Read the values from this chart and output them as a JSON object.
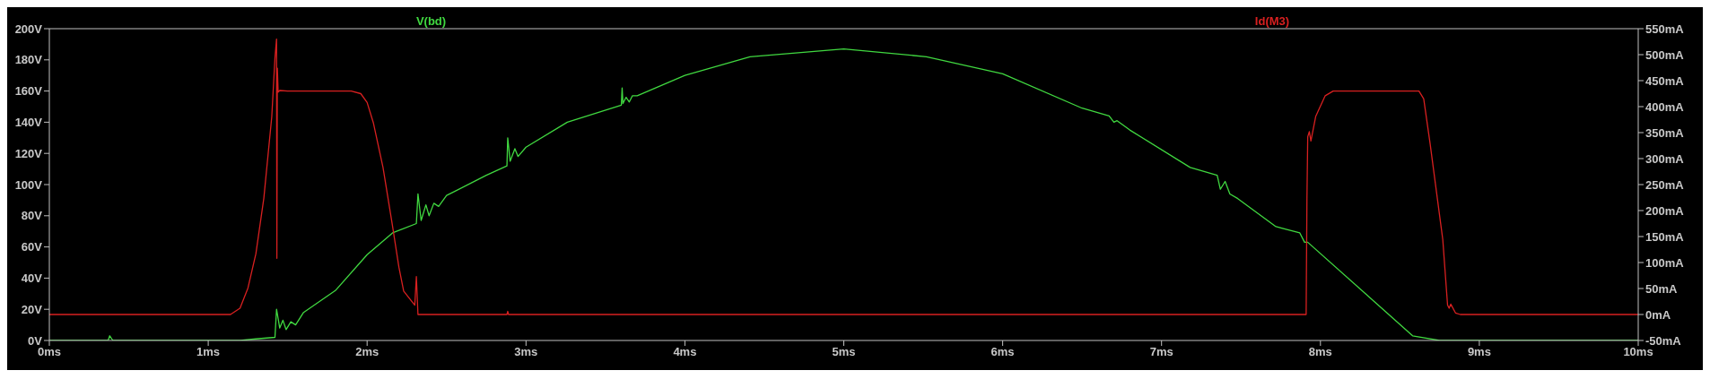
{
  "chart_data": {
    "type": "line",
    "legend": "top",
    "marker": "none",
    "line_style": "solid",
    "grid": false,
    "xlim": [
      0,
      10
    ],
    "xticks": [
      {
        "value": 0,
        "label": "0ms"
      },
      {
        "value": 1,
        "label": "1ms"
      },
      {
        "value": 2,
        "label": "2ms"
      },
      {
        "value": 3,
        "label": "3ms"
      },
      {
        "value": 4,
        "label": "4ms"
      },
      {
        "value": 5,
        "label": "5ms"
      },
      {
        "value": 6,
        "label": "6ms"
      },
      {
        "value": 7,
        "label": "7ms"
      },
      {
        "value": 8,
        "label": "8ms"
      },
      {
        "value": 9,
        "label": "9ms"
      },
      {
        "value": 10,
        "label": "10ms"
      }
    ],
    "ylim": [
      0,
      200
    ],
    "yticks": [
      {
        "value": 0,
        "label": "0V"
      },
      {
        "value": 20,
        "label": "20V"
      },
      {
        "value": 40,
        "label": "40V"
      },
      {
        "value": 60,
        "label": "60V"
      },
      {
        "value": 80,
        "label": "80V"
      },
      {
        "value": 100,
        "label": "100V"
      },
      {
        "value": 120,
        "label": "120V"
      },
      {
        "value": 140,
        "label": "140V"
      },
      {
        "value": 160,
        "label": "160V"
      },
      {
        "value": 180,
        "label": "180V"
      },
      {
        "value": 200,
        "label": "200V"
      }
    ],
    "y2lim": [
      -50,
      550
    ],
    "y2ticks": [
      {
        "value": -50,
        "label": "-50mA"
      },
      {
        "value": 0,
        "label": "0mA"
      },
      {
        "value": 50,
        "label": "50mA"
      },
      {
        "value": 100,
        "label": "100mA"
      },
      {
        "value": 150,
        "label": "150mA"
      },
      {
        "value": 200,
        "label": "200mA"
      },
      {
        "value": 250,
        "label": "250mA"
      },
      {
        "value": 300,
        "label": "300mA"
      },
      {
        "value": 350,
        "label": "350mA"
      },
      {
        "value": 400,
        "label": "400mA"
      },
      {
        "value": 450,
        "label": "450mA"
      },
      {
        "value": 500,
        "label": "500mA"
      },
      {
        "value": 550,
        "label": "550mA"
      }
    ],
    "series": [
      {
        "name": "V(bd)",
        "color": "#40d840",
        "x": [
          0,
          0.37,
          0.38,
          0.4,
          1.2,
          1.3,
          1.42,
          1.43,
          1.45,
          1.47,
          1.49,
          1.52,
          1.55,
          1.6,
          1.8,
          2.0,
          2.16,
          2.31,
          2.32,
          2.34,
          2.37,
          2.39,
          2.42,
          2.45,
          2.5,
          2.75,
          2.88,
          2.885,
          2.9,
          2.93,
          2.95,
          3.0,
          3.26,
          3.6,
          3.605,
          3.61,
          3.63,
          3.65,
          3.67,
          3.7,
          4.0,
          4.41,
          5.0,
          5.52,
          6.0,
          6.5,
          6.67,
          6.7,
          6.72,
          6.8,
          7.18,
          7.35,
          7.37,
          7.4,
          7.43,
          7.48,
          7.72,
          7.87,
          7.9,
          7.92,
          8.58,
          8.75,
          10
        ],
        "values": [
          0,
          0,
          3,
          0,
          0,
          1,
          2,
          20,
          8,
          13,
          7,
          12,
          10,
          18,
          32,
          55,
          69,
          75,
          94,
          77,
          87,
          80,
          88,
          86,
          93,
          106,
          112,
          130,
          115,
          123,
          118,
          124,
          140,
          151,
          162,
          152,
          156,
          153,
          157,
          157,
          170,
          182,
          187,
          182,
          171,
          149,
          144,
          140,
          141,
          135,
          111,
          106,
          97,
          102,
          94,
          91,
          73,
          69,
          63,
          63,
          3,
          0,
          0
        ]
      },
      {
        "name": "Id(M3)",
        "color": "#d82020",
        "axis": "y2",
        "x": [
          0,
          1.14,
          1.2,
          1.25,
          1.3,
          1.35,
          1.4,
          1.42,
          1.43,
          1.432,
          1.435,
          1.44,
          1.45,
          1.5,
          1.9,
          1.96,
          2.0,
          2.04,
          2.1,
          2.16,
          2.2,
          2.23,
          2.3,
          2.31,
          2.32,
          2.88,
          2.885,
          2.89,
          7.91,
          7.915,
          7.92,
          7.93,
          7.94,
          7.97,
          8.03,
          8.08,
          8.62,
          8.65,
          8.69,
          8.77,
          8.8,
          8.81,
          8.82,
          8.85,
          8.88,
          10
        ],
        "values": [
          0,
          0,
          12,
          51,
          117,
          224,
          381,
          494,
          530,
          108,
          474,
          428,
          431,
          430,
          430,
          425,
          408,
          368,
          283,
          170,
          91,
          45,
          18,
          73,
          0,
          0,
          6,
          0,
          0,
          223,
          342,
          352,
          334,
          381,
          421,
          430,
          430,
          415,
          329,
          144,
          18,
          12,
          20,
          3,
          0,
          0
        ]
      }
    ]
  }
}
